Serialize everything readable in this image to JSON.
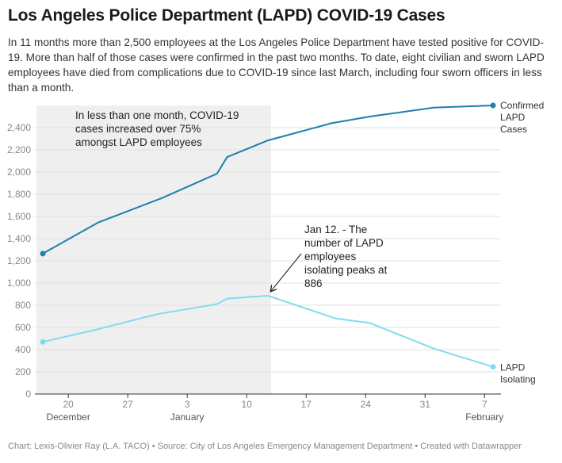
{
  "header": {
    "title": "Los Angeles Police Department (LAPD) COVID-19 Cases",
    "description": "In 11 months more than 2,500 employees at the Los Angeles Police Department have tested positive for COVID-19. More than half of those cases were confirmed in the past two months. To date, eight civilian and sworn LAPD employees have died from complications due to COVID-19 since last March, including four sworn officers in less than a month."
  },
  "footer": {
    "text": "Chart: Lexis-Olivier Ray (L.A. TACO) • Source: City of Los Angeles Emergency Management Department • Created with Datawrapper"
  },
  "chart_data": {
    "type": "line",
    "x_unit": "days since Dec 17 (tick labels show dates)",
    "ylim": [
      0,
      2600
    ],
    "y_ticks": [
      0,
      200,
      400,
      600,
      800,
      1000,
      1200,
      1400,
      1600,
      1800,
      2000,
      2200,
      2400
    ],
    "y_tick_labels": [
      "0",
      "200",
      "400",
      "600",
      "800",
      "1,000",
      "1,200",
      "1,400",
      "1,600",
      "1,800",
      "2,000",
      "2,200",
      "2,400"
    ],
    "x_ticks": [
      {
        "label": "20",
        "month": "December",
        "day": 3
      },
      {
        "label": "27",
        "month": "",
        "day": 10
      },
      {
        "label": "3",
        "month": "January",
        "day": 17
      },
      {
        "label": "10",
        "month": "",
        "day": 24
      },
      {
        "label": "17",
        "month": "",
        "day": 31
      },
      {
        "label": "24",
        "month": "",
        "day": 38
      },
      {
        "label": "31",
        "month": "",
        "day": 45
      },
      {
        "label": "7",
        "month": "February",
        "day": 52
      }
    ],
    "highlight_range": {
      "from": 0,
      "to": 26.5
    },
    "series": [
      {
        "name": "Confirmed LAPD Cases",
        "label_lines": [
          "Confirmed",
          "LAPD",
          "Cases"
        ],
        "color": "#1d7fac",
        "x": [
          0,
          6.5,
          14,
          20.5,
          21.7,
          26.5,
          34,
          38.5,
          46,
          53
        ],
        "y": [
          1265,
          1545,
          1765,
          1985,
          2135,
          2285,
          2440,
          2500,
          2580,
          2600
        ]
      },
      {
        "name": "LAPD Isolating",
        "label_lines": [
          "LAPD",
          "Isolating"
        ],
        "color": "#7fdcf0",
        "x": [
          0,
          6,
          13.5,
          20.5,
          21.7,
          26.5,
          34.5,
          38.5,
          46,
          53
        ],
        "y": [
          470,
          575,
          720,
          810,
          860,
          886,
          680,
          640,
          410,
          245
        ]
      }
    ],
    "annotations": [
      {
        "lines": [
          "In less than one month, COVID-19",
          "cases increased over 75%",
          "amongst LAPD employees"
        ]
      },
      {
        "lines": [
          "Jan 12. - The",
          "number of LAPD",
          "employees",
          "isolating peaks at",
          "886"
        ]
      }
    ]
  }
}
